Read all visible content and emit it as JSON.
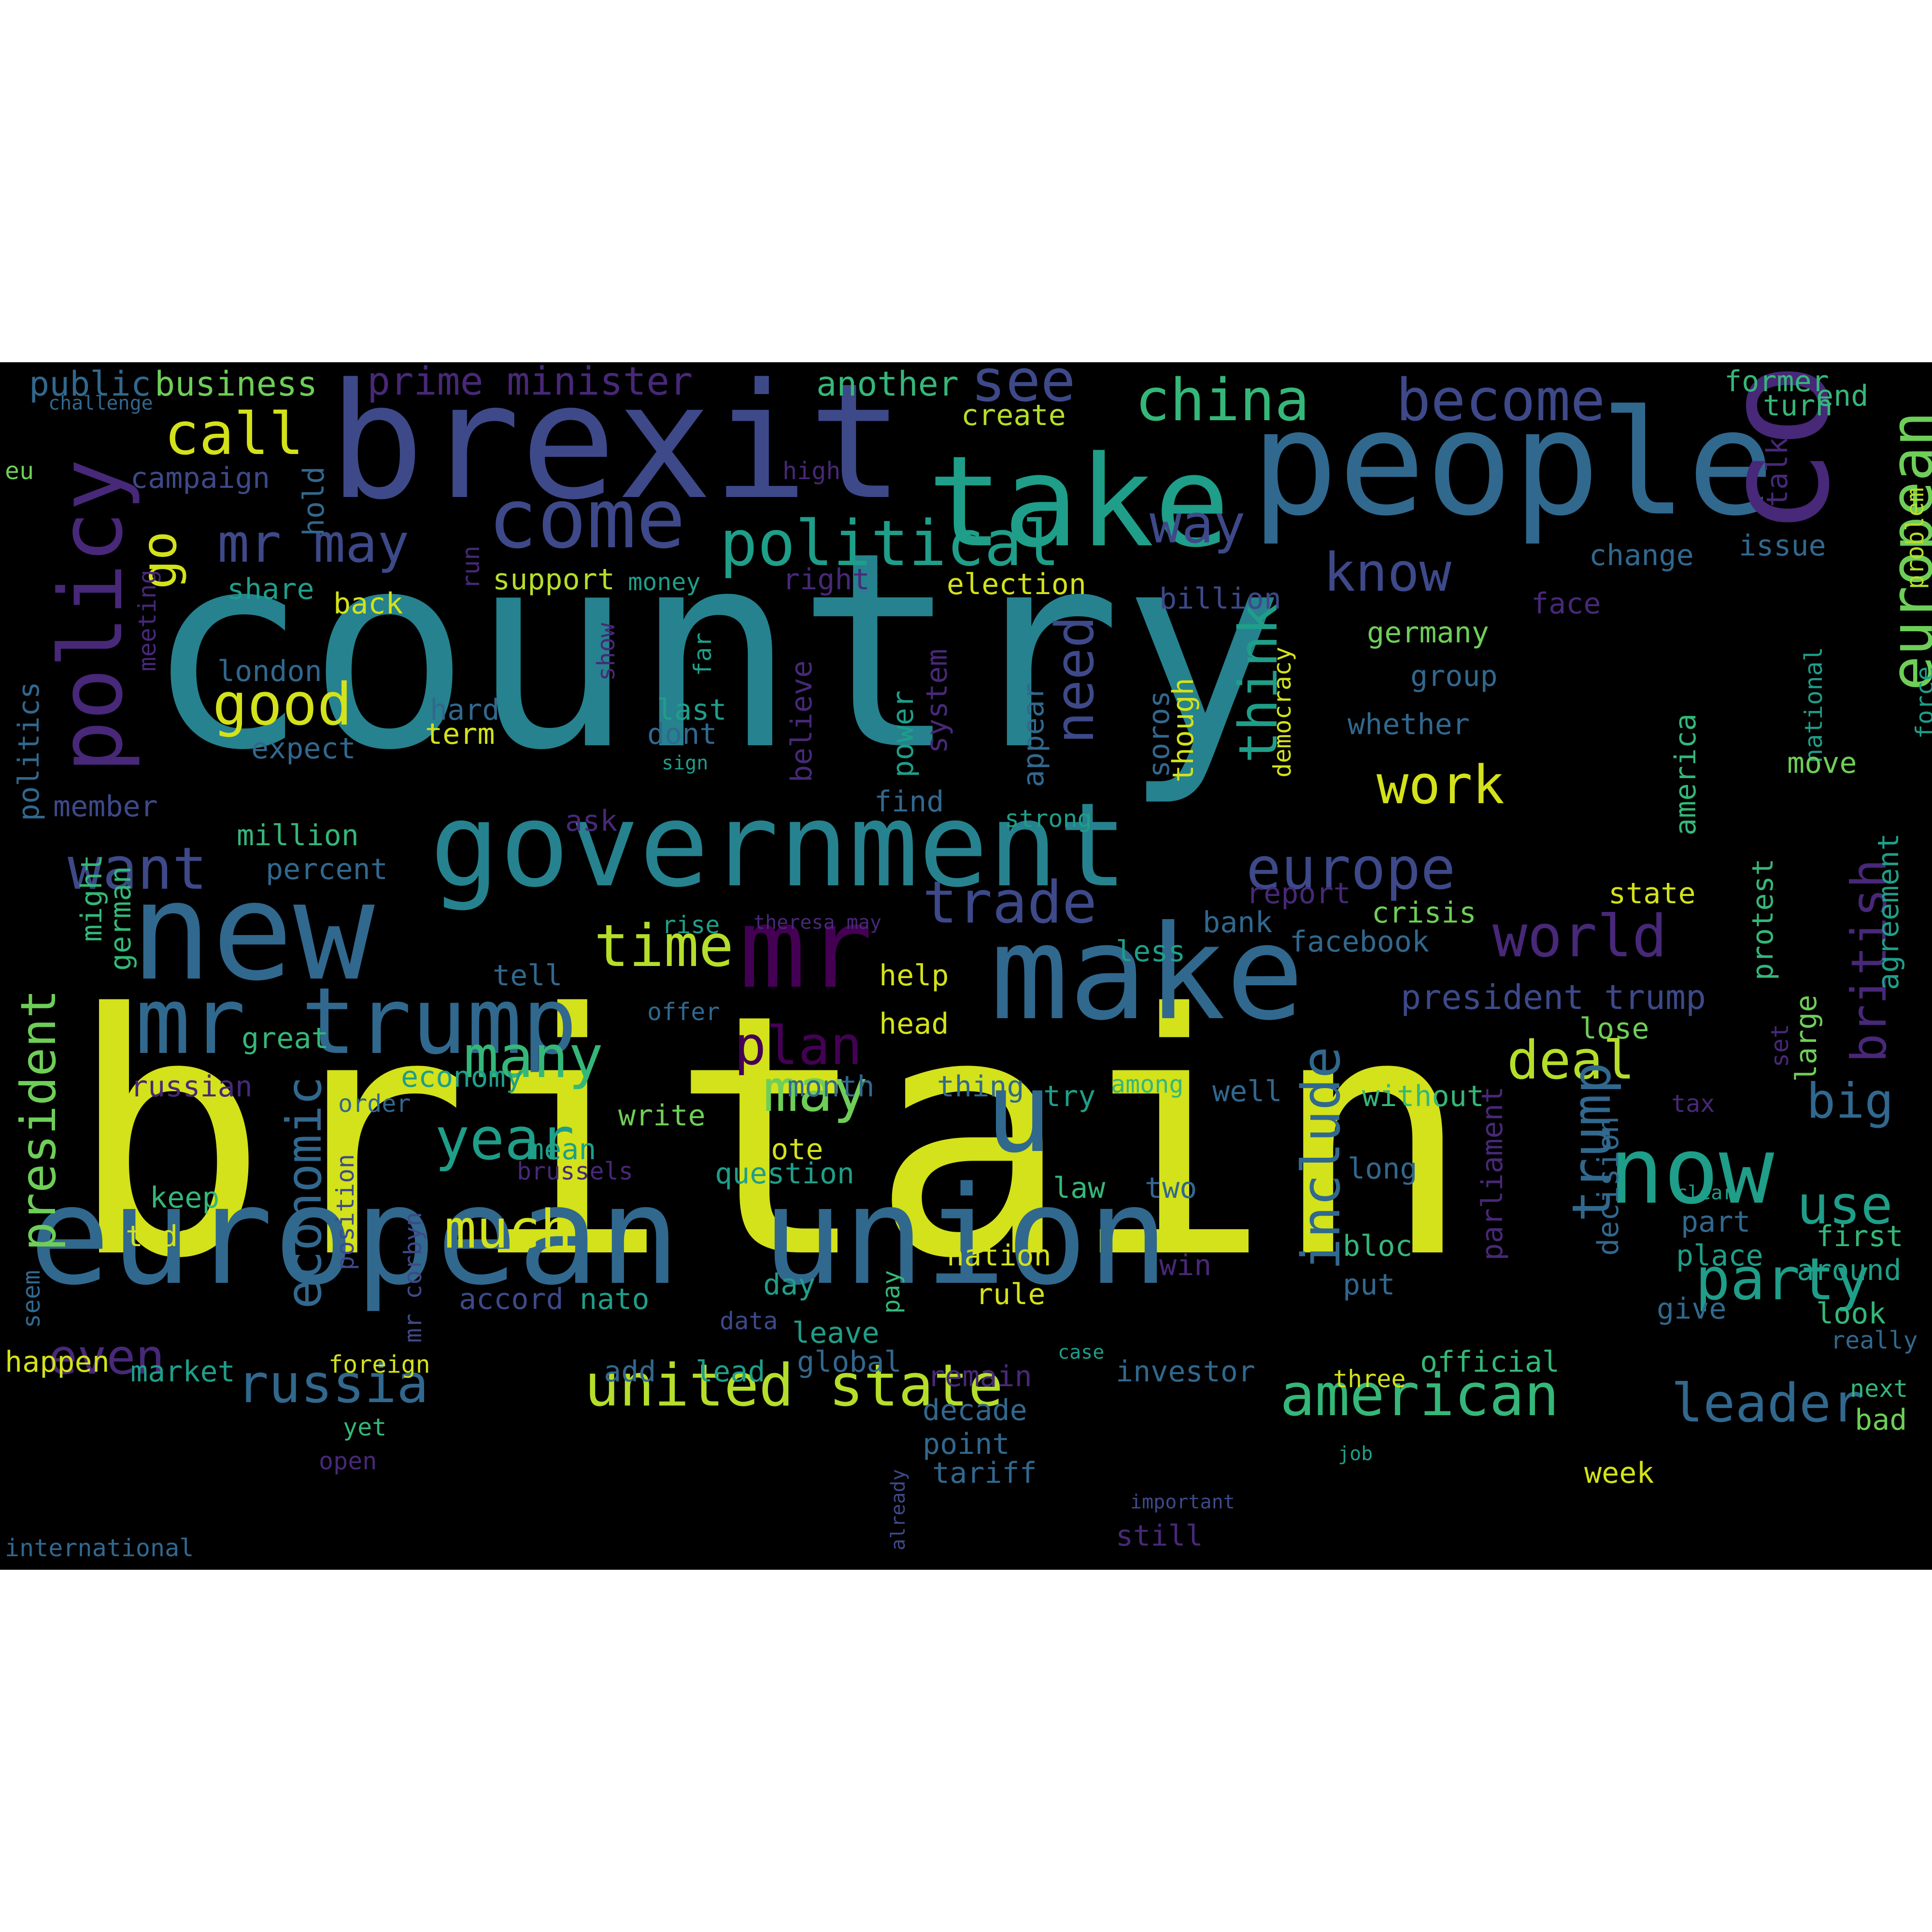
{
  "palette": {
    "yellow": "#d3e21a",
    "lime": "#b5de2b",
    "green": "#6ece58",
    "teal_light": "#35b779",
    "teal": "#1f9e89",
    "cyan": "#26828e",
    "steel": "#31688e",
    "indigo": "#3e4989",
    "purple": "#482878",
    "dark_purple": "#440154"
  },
  "words": [
    {
      "text": "country",
      "color": "cyan"
    },
    {
      "text": "britain",
      "color": "yellow"
    },
    {
      "text": "brexit",
      "color": "indigo"
    },
    {
      "text": "take",
      "color": "teal"
    },
    {
      "text": "people",
      "color": "steel"
    },
    {
      "text": "european union",
      "color": "steel"
    },
    {
      "text": "make",
      "color": "steel"
    },
    {
      "text": "new",
      "color": "steel"
    },
    {
      "text": "government",
      "color": "cyan"
    },
    {
      "text": "company",
      "color": "purple"
    },
    {
      "text": "mr",
      "color": "dark_purple"
    },
    {
      "text": "mr trump",
      "color": "steel"
    },
    {
      "text": "policy",
      "color": "purple"
    },
    {
      "text": "come",
      "color": "indigo"
    },
    {
      "text": "political",
      "color": "teal"
    },
    {
      "text": "now",
      "color": "teal"
    },
    {
      "text": "u",
      "color": "steel"
    },
    {
      "text": "china",
      "color": "teal_light"
    },
    {
      "text": "become",
      "color": "indigo"
    },
    {
      "text": "call",
      "color": "yellow"
    },
    {
      "text": "see",
      "color": "indigo"
    },
    {
      "text": "european",
      "color": "green"
    },
    {
      "text": "british",
      "color": "purple"
    },
    {
      "text": "europe",
      "color": "indigo"
    },
    {
      "text": "world",
      "color": "purple"
    },
    {
      "text": "trade",
      "color": "indigo"
    },
    {
      "text": "plan",
      "color": "dark_purple"
    },
    {
      "text": "time",
      "color": "lime"
    },
    {
      "text": "deal",
      "color": "lime"
    },
    {
      "text": "want",
      "color": "indigo"
    },
    {
      "text": "good",
      "color": "yellow"
    },
    {
      "text": "work",
      "color": "yellow"
    },
    {
      "text": "know",
      "color": "indigo"
    },
    {
      "text": "need",
      "color": "indigo"
    },
    {
      "text": "think",
      "color": "teal"
    },
    {
      "text": "way",
      "color": "indigo"
    },
    {
      "text": "mr may",
      "color": "indigo"
    },
    {
      "text": "go",
      "color": "yellow"
    },
    {
      "text": "many",
      "color": "teal_light"
    },
    {
      "text": "may",
      "color": "green"
    },
    {
      "text": "year",
      "color": "teal"
    },
    {
      "text": "much",
      "color": "yellow"
    },
    {
      "text": "party",
      "color": "teal"
    },
    {
      "text": "trump",
      "color": "steel"
    },
    {
      "text": "include",
      "color": "steel"
    },
    {
      "text": "big",
      "color": "steel"
    },
    {
      "text": "use",
      "color": "teal"
    },
    {
      "text": "president",
      "color": "green"
    },
    {
      "text": "economic",
      "color": "steel"
    },
    {
      "text": "even",
      "color": "purple"
    },
    {
      "text": "russia",
      "color": "steel"
    },
    {
      "text": "united state",
      "color": "lime"
    },
    {
      "text": "american",
      "color": "teal_light"
    },
    {
      "text": "leader",
      "color": "steel"
    },
    {
      "text": "prime minister",
      "color": "purple"
    },
    {
      "text": "public",
      "color": "steel"
    },
    {
      "text": "business",
      "color": "green"
    },
    {
      "text": "challenge",
      "color": "steel"
    },
    {
      "text": "another",
      "color": "teal_light"
    },
    {
      "text": "create",
      "color": "lime"
    },
    {
      "text": "former",
      "color": "teal_light"
    },
    {
      "text": "turn",
      "color": "teal_light"
    },
    {
      "text": "end",
      "color": "teal_light"
    },
    {
      "text": "eu",
      "color": "green"
    },
    {
      "text": "campaign",
      "color": "indigo"
    },
    {
      "text": "high",
      "color": "purple"
    },
    {
      "text": "talk",
      "color": "purple"
    },
    {
      "text": "problem",
      "color": "lime"
    },
    {
      "text": "issue",
      "color": "steel"
    },
    {
      "text": "change",
      "color": "steel"
    },
    {
      "text": "face",
      "color": "purple"
    },
    {
      "text": "hold",
      "color": "steel"
    },
    {
      "text": "share",
      "color": "teal"
    },
    {
      "text": "back",
      "color": "yellow"
    },
    {
      "text": "support",
      "color": "lime"
    },
    {
      "text": "money",
      "color": "teal"
    },
    {
      "text": "right",
      "color": "purple"
    },
    {
      "text": "election",
      "color": "yellow"
    },
    {
      "text": "billion",
      "color": "indigo"
    },
    {
      "text": "run",
      "color": "purple"
    },
    {
      "text": "meeting",
      "color": "purple"
    },
    {
      "text": "show",
      "color": "purple"
    },
    {
      "text": "far",
      "color": "teal"
    },
    {
      "text": "believe",
      "color": "purple"
    },
    {
      "text": "system",
      "color": "purple"
    },
    {
      "text": "democracy",
      "color": "yellow"
    },
    {
      "text": "germany",
      "color": "green"
    },
    {
      "text": "group",
      "color": "steel"
    },
    {
      "text": "whether",
      "color": "steel"
    },
    {
      "text": "force",
      "color": "teal"
    },
    {
      "text": "london",
      "color": "steel"
    },
    {
      "text": "hard",
      "color": "steel"
    },
    {
      "text": "last",
      "color": "teal"
    },
    {
      "text": "term",
      "color": "yellow"
    },
    {
      "text": "dont",
      "color": "steel"
    },
    {
      "text": "expect",
      "color": "steel"
    },
    {
      "text": "sign",
      "color": "teal"
    },
    {
      "text": "power",
      "color": "teal"
    },
    {
      "text": "appear",
      "color": "steel"
    },
    {
      "text": "soros",
      "color": "steel"
    },
    {
      "text": "though",
      "color": "yellow"
    },
    {
      "text": "national",
      "color": "teal"
    },
    {
      "text": "move",
      "color": "green"
    },
    {
      "text": "politics",
      "color": "steel"
    },
    {
      "text": "member",
      "color": "indigo"
    },
    {
      "text": "find",
      "color": "steel"
    },
    {
      "text": "strong",
      "color": "teal"
    },
    {
      "text": "america",
      "color": "teal_light"
    },
    {
      "text": "ask",
      "color": "purple"
    },
    {
      "text": "million",
      "color": "teal_light"
    },
    {
      "text": "percent",
      "color": "steel"
    },
    {
      "text": "report",
      "color": "purple"
    },
    {
      "text": "state",
      "color": "yellow"
    },
    {
      "text": "agreement",
      "color": "teal"
    },
    {
      "text": "large",
      "color": "green"
    },
    {
      "text": "might",
      "color": "teal_light"
    },
    {
      "text": "german",
      "color": "teal_light"
    },
    {
      "text": "rise",
      "color": "teal"
    },
    {
      "text": "theresa may",
      "color": "purple"
    },
    {
      "text": "bank",
      "color": "steel"
    },
    {
      "text": "crisis",
      "color": "green"
    },
    {
      "text": "protest",
      "color": "teal_light"
    },
    {
      "text": "less",
      "color": "teal"
    },
    {
      "text": "facebook",
      "color": "steel"
    },
    {
      "text": "tell",
      "color": "steel"
    },
    {
      "text": "help",
      "color": "yellow"
    },
    {
      "text": "offer",
      "color": "steel"
    },
    {
      "text": "president trump",
      "color": "indigo"
    },
    {
      "text": "set",
      "color": "purple"
    },
    {
      "text": "head",
      "color": "yellow"
    },
    {
      "text": "lose",
      "color": "green"
    },
    {
      "text": "great",
      "color": "teal_light"
    },
    {
      "text": "economy",
      "color": "teal"
    },
    {
      "text": "russian",
      "color": "purple"
    },
    {
      "text": "month",
      "color": "steel"
    },
    {
      "text": "thing",
      "color": "steel"
    },
    {
      "text": "among",
      "color": "teal_light"
    },
    {
      "text": "well",
      "color": "steel"
    },
    {
      "text": "try",
      "color": "teal"
    },
    {
      "text": "without",
      "color": "teal_light"
    },
    {
      "text": "order",
      "color": "steel"
    },
    {
      "text": "write",
      "color": "green"
    },
    {
      "text": "tax",
      "color": "purple"
    },
    {
      "text": "mean",
      "color": "teal"
    },
    {
      "text": "vote",
      "color": "yellow"
    },
    {
      "text": "position",
      "color": "indigo"
    },
    {
      "text": "brussels",
      "color": "purple"
    },
    {
      "text": "question",
      "color": "teal"
    },
    {
      "text": "long",
      "color": "steel"
    },
    {
      "text": "parliament",
      "color": "purple"
    },
    {
      "text": "decision",
      "color": "steel"
    },
    {
      "text": "law",
      "color": "teal_light"
    },
    {
      "text": "two",
      "color": "steel"
    },
    {
      "text": "keep",
      "color": "teal_light"
    },
    {
      "text": "today",
      "color": "yellow"
    },
    {
      "text": "mr corbyn",
      "color": "indigo"
    },
    {
      "text": "clear",
      "color": "teal"
    },
    {
      "text": "part",
      "color": "steel"
    },
    {
      "text": "first",
      "color": "teal_light"
    },
    {
      "text": "bloc",
      "color": "teal_light"
    },
    {
      "text": "place",
      "color": "teal"
    },
    {
      "text": "around",
      "color": "teal"
    },
    {
      "text": "nation",
      "color": "yellow"
    },
    {
      "text": "win",
      "color": "purple"
    },
    {
      "text": "day",
      "color": "teal"
    },
    {
      "text": "put",
      "color": "steel"
    },
    {
      "text": "seem",
      "color": "steel"
    },
    {
      "text": "nato",
      "color": "teal"
    },
    {
      "text": "accord",
      "color": "indigo"
    },
    {
      "text": "pay",
      "color": "teal_light"
    },
    {
      "text": "rule",
      "color": "yellow"
    },
    {
      "text": "data",
      "color": "indigo"
    },
    {
      "text": "give",
      "color": "steel"
    },
    {
      "text": "look",
      "color": "teal_light"
    },
    {
      "text": "leave",
      "color": "teal"
    },
    {
      "text": "really",
      "color": "steel"
    },
    {
      "text": "case",
      "color": "teal"
    },
    {
      "text": "happen",
      "color": "yellow"
    },
    {
      "text": "foreign",
      "color": "yellow"
    },
    {
      "text": "market",
      "color": "teal"
    },
    {
      "text": "add",
      "color": "steel"
    },
    {
      "text": "lead",
      "color": "teal"
    },
    {
      "text": "global",
      "color": "steel"
    },
    {
      "text": "remain",
      "color": "purple"
    },
    {
      "text": "investor",
      "color": "steel"
    },
    {
      "text": "three",
      "color": "yellow"
    },
    {
      "text": "official",
      "color": "teal_light"
    },
    {
      "text": "next",
      "color": "teal_light"
    },
    {
      "text": "decade",
      "color": "steel"
    },
    {
      "text": "bad",
      "color": "green"
    },
    {
      "text": "yet",
      "color": "teal_light"
    },
    {
      "text": "point",
      "color": "steel"
    },
    {
      "text": "already",
      "color": "indigo"
    },
    {
      "text": "job",
      "color": "teal"
    },
    {
      "text": "open",
      "color": "purple"
    },
    {
      "text": "tariff",
      "color": "steel"
    },
    {
      "text": "week",
      "color": "yellow"
    },
    {
      "text": "important",
      "color": "indigo"
    },
    {
      "text": "still",
      "color": "purple"
    },
    {
      "text": "international",
      "color": "steel"
    }
  ]
}
